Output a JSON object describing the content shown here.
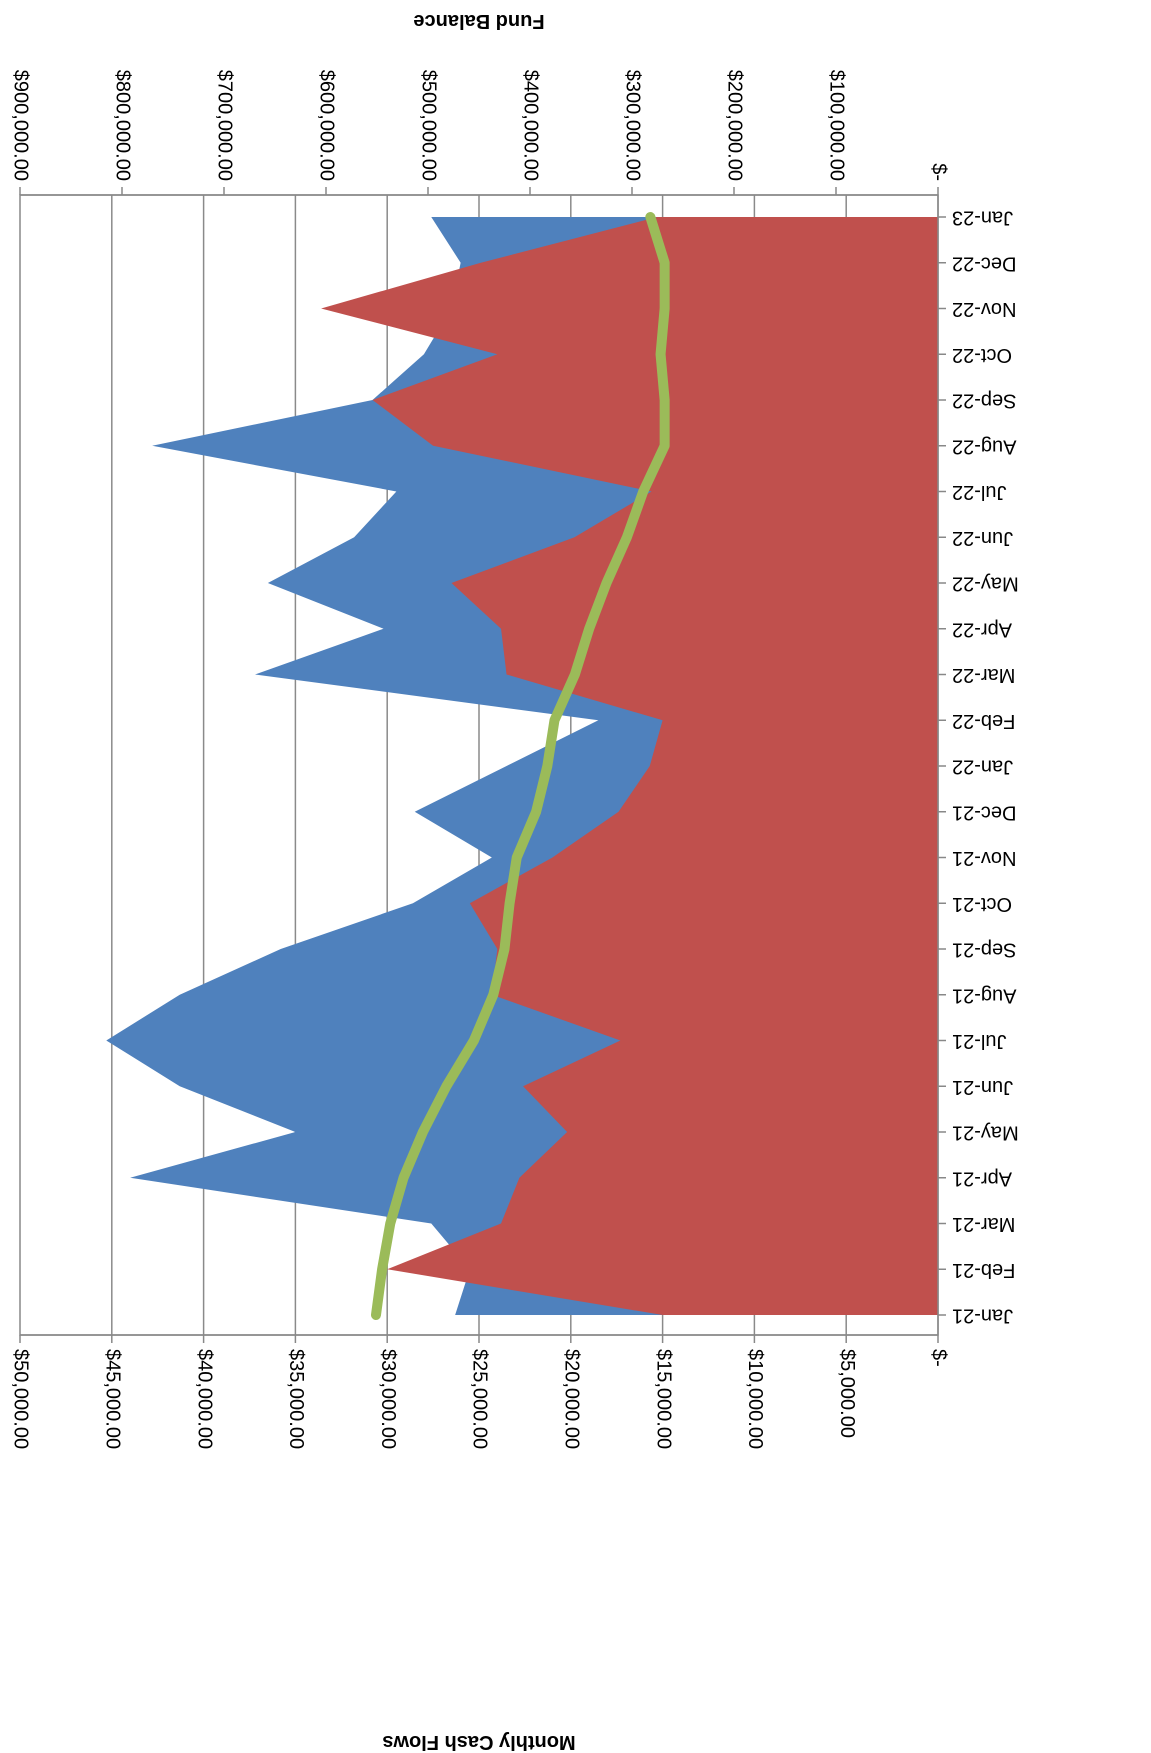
{
  "chart_data": {
    "type": "area",
    "orientation": "rotated-180",
    "categories": [
      "Jan-21",
      "Feb-21",
      "Mar-21",
      "Apr-21",
      "May-21",
      "Jun-21",
      "Jul-21",
      "Aug-21",
      "Sep-21",
      "Oct-21",
      "Nov-21",
      "Dec-21",
      "Jan-22",
      "Feb-22",
      "Mar-22",
      "Apr-22",
      "May-22",
      "Jun-22",
      "Jul-22",
      "Aug-22",
      "Sep-22",
      "Oct-22",
      "Nov-22",
      "Dec-22",
      "Jan-23"
    ],
    "series": [
      {
        "kind": "area",
        "axis": "primary",
        "color": "#4F81BD",
        "values": [
          26300,
          25500,
          27600,
          44000,
          35000,
          41300,
          45300,
          41300,
          35800,
          28600,
          24300,
          28500,
          23500,
          18500,
          37200,
          30200,
          36500,
          31800,
          29500,
          42800,
          30800,
          28000,
          26500,
          26000,
          27600
        ]
      },
      {
        "kind": "area",
        "axis": "primary",
        "color": "#C0504D",
        "values": [
          15000,
          30000,
          23800,
          22800,
          20200,
          22600,
          17300,
          24300,
          24000,
          25500,
          21000,
          17400,
          15700,
          15000,
          23500,
          23800,
          26500,
          19800,
          15600,
          27500,
          30800,
          24000,
          33600,
          24900,
          15300
        ]
      },
      {
        "kind": "line",
        "axis": "secondary",
        "color": "#9BBB59",
        "values": [
          551000,
          545000,
          537000,
          524000,
          505000,
          482000,
          455000,
          436000,
          425000,
          420000,
          413000,
          394000,
          383000,
          376000,
          356000,
          342000,
          325000,
          305000,
          289000,
          268000,
          268000,
          272000,
          268000,
          268000,
          282000
        ]
      }
    ],
    "primary_axis": {
      "title": "Monthly Cash Flows",
      "range": [
        0,
        50000
      ],
      "ticks": [
        0,
        5000,
        10000,
        15000,
        20000,
        25000,
        30000,
        35000,
        40000,
        45000,
        50000
      ],
      "tick_labels": [
        "$-",
        "$5,000.00",
        "$10,000.00",
        "$15,000.00",
        "$20,000.00",
        "$25,000.00",
        "$30,000.00",
        "$35,000.00",
        "$40,000.00",
        "$45,000.00",
        "$50,000.00"
      ]
    },
    "secondary_axis": {
      "title": "Fund Balance",
      "range": [
        0,
        900000
      ],
      "ticks": [
        0,
        100000,
        200000,
        300000,
        400000,
        500000,
        600000,
        700000,
        800000,
        900000
      ],
      "tick_labels": [
        "$-",
        "$100,000.00",
        "$200,000.00",
        "$300,000.00",
        "$400,000.00",
        "$500,000.00",
        "$600,000.00",
        "$700,000.00",
        "$800,000.00",
        "$900,000.00"
      ]
    },
    "gridlines": true,
    "legend": "none"
  }
}
